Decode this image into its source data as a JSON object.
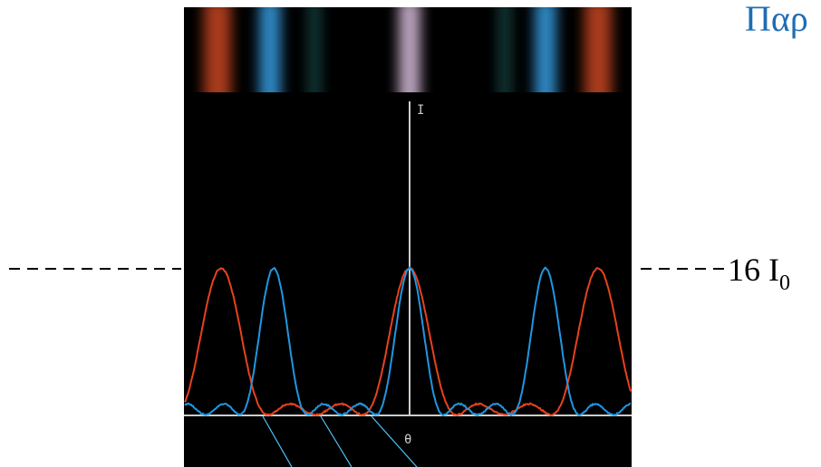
{
  "header": {
    "title": "Παρ"
  },
  "labels": {
    "intensity_axis": "I",
    "angle_axis": "θ",
    "level": "16 I",
    "level_subscript": "0"
  }
}
